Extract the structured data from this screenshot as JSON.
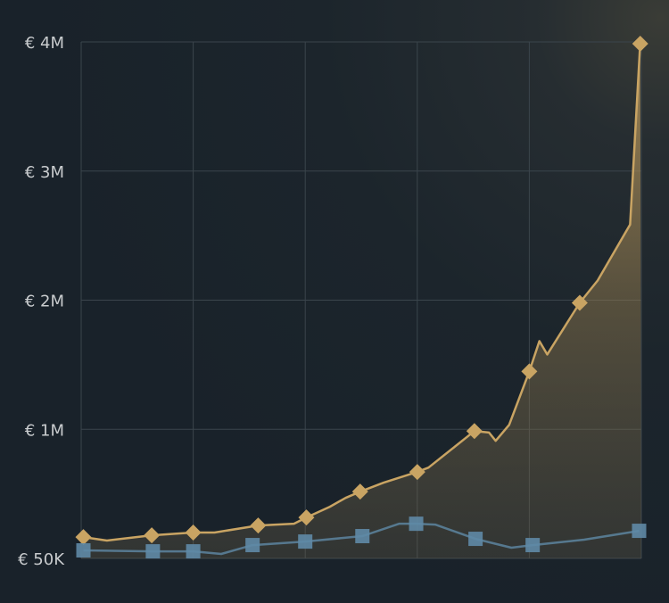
{
  "chart_data": {
    "type": "area",
    "title": "",
    "xlabel": "",
    "ylabel": "",
    "y_ticks": [
      {
        "value": 50000,
        "label": "€ 50K"
      },
      {
        "value": 1000000,
        "label": "€ 1M"
      },
      {
        "value": 2000000,
        "label": "€ 2M"
      },
      {
        "value": 3000000,
        "label": "€ 3M"
      },
      {
        "value": 4000000,
        "label": "€ 4M"
      }
    ],
    "xlim": [
      0,
      5
    ],
    "x_gridlines": [
      0,
      1,
      2,
      3,
      4,
      5
    ],
    "grid": true,
    "legend": "none",
    "series": [
      {
        "color": "#c9a463",
        "marker": "diamond",
        "filled": true,
        "points": [
          {
            "x": 0.02,
            "y": 207000,
            "m": true
          },
          {
            "x": 0.23,
            "y": 181000,
            "m": false
          },
          {
            "x": 0.63,
            "y": 220000,
            "m": true
          },
          {
            "x": 1.0,
            "y": 240000,
            "m": true
          },
          {
            "x": 1.19,
            "y": 240000,
            "m": false
          },
          {
            "x": 1.58,
            "y": 292000,
            "m": true
          },
          {
            "x": 1.9,
            "y": 305000,
            "m": false
          },
          {
            "x": 2.01,
            "y": 351000,
            "m": true
          },
          {
            "x": 2.22,
            "y": 430000,
            "m": false
          },
          {
            "x": 2.36,
            "y": 495000,
            "m": false
          },
          {
            "x": 2.49,
            "y": 541000,
            "m": true
          },
          {
            "x": 2.7,
            "y": 607000,
            "m": false
          },
          {
            "x": 3.0,
            "y": 686000,
            "m": true
          },
          {
            "x": 3.1,
            "y": 718000,
            "m": false
          },
          {
            "x": 3.51,
            "y": 987000,
            "m": true
          },
          {
            "x": 3.64,
            "y": 976000,
            "m": false
          },
          {
            "x": 3.7,
            "y": 915000,
            "m": false
          },
          {
            "x": 3.82,
            "y": 1034000,
            "m": false
          },
          {
            "x": 4.0,
            "y": 1448000,
            "m": true
          },
          {
            "x": 4.09,
            "y": 1683000,
            "m": false
          },
          {
            "x": 4.16,
            "y": 1579000,
            "m": false
          },
          {
            "x": 4.45,
            "y": 1979000,
            "m": true
          },
          {
            "x": 4.61,
            "y": 2152000,
            "m": false
          },
          {
            "x": 4.9,
            "y": 2586000,
            "m": false
          },
          {
            "x": 4.99,
            "y": 3986000,
            "m": true
          }
        ]
      },
      {
        "color": "#5f8aa6",
        "marker": "square",
        "filled": false,
        "points": [
          {
            "x": 0.02,
            "y": 109000,
            "m": true
          },
          {
            "x": 0.64,
            "y": 102000,
            "m": true
          },
          {
            "x": 1.0,
            "y": 102000,
            "m": true
          },
          {
            "x": 1.25,
            "y": 83000,
            "m": false
          },
          {
            "x": 1.53,
            "y": 148000,
            "m": true
          },
          {
            "x": 2.0,
            "y": 174000,
            "m": true
          },
          {
            "x": 2.51,
            "y": 214000,
            "m": true
          },
          {
            "x": 2.84,
            "y": 305000,
            "m": false
          },
          {
            "x": 2.99,
            "y": 305000,
            "m": true
          },
          {
            "x": 3.16,
            "y": 299000,
            "m": false
          },
          {
            "x": 3.52,
            "y": 194000,
            "m": true
          },
          {
            "x": 3.84,
            "y": 129000,
            "m": false
          },
          {
            "x": 4.03,
            "y": 148000,
            "m": true
          },
          {
            "x": 4.49,
            "y": 188000,
            "m": false
          },
          {
            "x": 4.98,
            "y": 253000,
            "m": true
          }
        ]
      }
    ]
  }
}
